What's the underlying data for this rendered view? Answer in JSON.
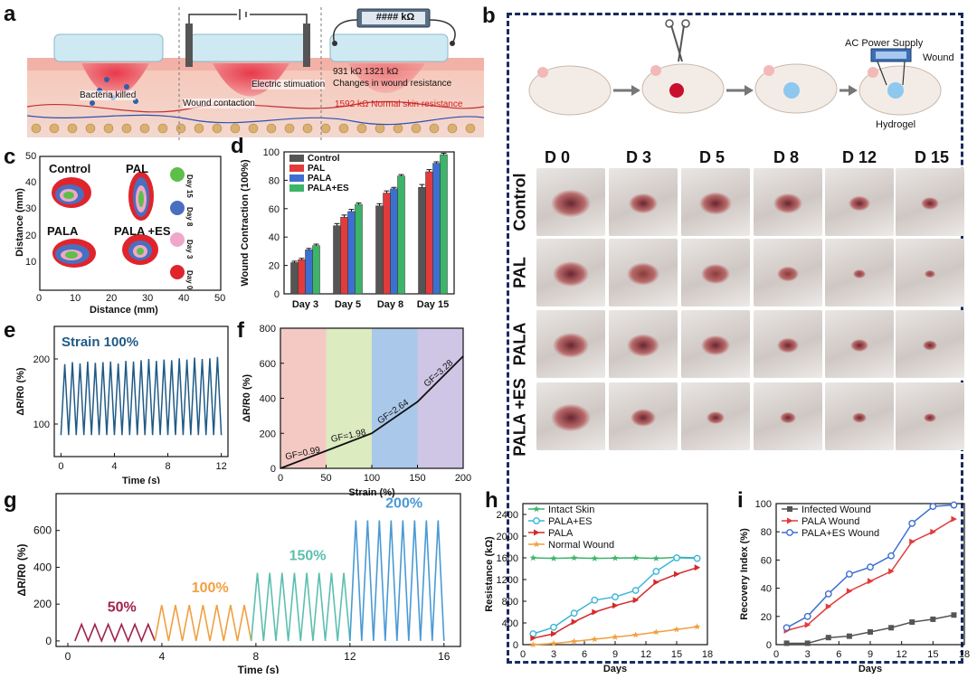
{
  "panel_labels": {
    "a": "a",
    "b": "b",
    "c": "c",
    "d": "d",
    "e": "e",
    "f": "f",
    "g": "g",
    "h": "h",
    "i": "i"
  },
  "schematic_a": {
    "meter": "#### kΩ",
    "bacteria": "Bacteria killed",
    "estim": "Electric stimuation",
    "contact": "Wound contaction",
    "resist": "931 kΩ 1321 kΩ",
    "resist2": "Changes in wound resistance",
    "normal": "1592 kΩ  Normal skin resistance"
  },
  "schematic_b": {
    "power": "AC Power Supply",
    "wound": "Wound",
    "hydrogel": "Hydrogel",
    "days": [
      "D 0",
      "D 3",
      "D 5",
      "D 8",
      "D 12",
      "D 15"
    ],
    "groups": [
      "Control",
      "PAL",
      "PALA",
      "PALA +ES"
    ]
  },
  "panel_c": {
    "xlabel": "Distance (mm)",
    "ylabel": "Distance (mm)",
    "xticks": [
      "0",
      "10",
      "20",
      "30",
      "40",
      "50"
    ],
    "yticks": [
      "10",
      "20",
      "30",
      "40",
      "50"
    ],
    "groups": [
      "Control",
      "PAL",
      "PALA",
      "PALA +ES"
    ],
    "legend": [
      "Day 15",
      "Day 8",
      "Day 3",
      "Day 0"
    ],
    "colors": [
      "#5cbf4a",
      "#4a6fbf",
      "#f0a8c8",
      "#e0242c"
    ]
  },
  "chart_data": [
    {
      "id": "d",
      "type": "bar",
      "categories": [
        "Day 3",
        "Day 5",
        "Day 8",
        "Day 15"
      ],
      "series": [
        {
          "name": "Control",
          "values": [
            22,
            48,
            62,
            75
          ],
          "err": [
            1,
            1.5,
            1.5,
            2
          ],
          "color": "#555555"
        },
        {
          "name": "PAL",
          "values": [
            24,
            54,
            71,
            86
          ],
          "err": [
            1,
            1.5,
            1.5,
            1.5
          ],
          "color": "#e23b3b"
        },
        {
          "name": "PALA",
          "values": [
            31,
            58,
            74,
            92
          ],
          "err": [
            1,
            1.5,
            1,
            1
          ],
          "color": "#3d6fd0"
        },
        {
          "name": "PALA+ES",
          "values": [
            34,
            63,
            83,
            98
          ],
          "err": [
            1,
            1,
            1,
            1
          ],
          "color": "#3cb46a"
        }
      ],
      "ylabel": "Wound Contraction (100%)",
      "ylim": [
        0,
        100
      ],
      "yticks": [
        "0",
        "20",
        "40",
        "60",
        "80",
        "100"
      ]
    },
    {
      "id": "e",
      "type": "line",
      "annotation": "Strain 100%",
      "xlabel": "Time (s)",
      "ylabel": "ΔR/R0 (%)",
      "xlim": [
        -0.5,
        12.5
      ],
      "ylim": [
        50,
        250
      ],
      "xticks": [
        "0",
        "4",
        "8",
        "12"
      ],
      "yticks": [
        "100",
        "200"
      ],
      "cycles": 21,
      "low": 83,
      "high": [
        192,
        195,
        193,
        196,
        194,
        195,
        196,
        193,
        197,
        196,
        198,
        200,
        197,
        199,
        198,
        201,
        199,
        202,
        200,
        201,
        203
      ]
    },
    {
      "id": "f",
      "type": "line",
      "xlabel": "Strain (%)",
      "ylabel": "ΔR/R0 (%)",
      "xlim": [
        0,
        200
      ],
      "ylim": [
        0,
        800
      ],
      "xticks": [
        "0",
        "50",
        "100",
        "150",
        "200"
      ],
      "yticks": [
        "0",
        "200",
        "400",
        "600",
        "800"
      ],
      "x": [
        0,
        50,
        100,
        150,
        200
      ],
      "y": [
        0,
        100,
        200,
        380,
        640
      ],
      "bands": [
        "#f4c9c4",
        "#dcebc0",
        "#a9c8ea",
        "#cfc6e6"
      ],
      "gf_labels": [
        "GF=0.99",
        "GF=1.98",
        "GF=2.64",
        "GF=3.28"
      ]
    },
    {
      "id": "g",
      "type": "line",
      "xlabel": "Time (s)",
      "ylabel": "ΔR/R0 (%)",
      "xlim": [
        -0.5,
        16.7
      ],
      "ylim": [
        -30,
        800
      ],
      "xticks": [
        "0",
        "4",
        "8",
        "12",
        "16"
      ],
      "yticks": [
        "0",
        "200",
        "400",
        "600"
      ],
      "segments": [
        {
          "label": "50%",
          "t0": 0.3,
          "t1": 3.7,
          "cycles": 6,
          "high": 90,
          "color": "#a0224a"
        },
        {
          "label": "100%",
          "t0": 3.7,
          "t1": 7.8,
          "cycles": 7,
          "high": 195,
          "color": "#f0a040"
        },
        {
          "label": "150%",
          "t0": 7.8,
          "t1": 12.0,
          "cycles": 8,
          "high": 370,
          "color": "#5cbfae"
        },
        {
          "label": "200%",
          "t0": 12.0,
          "t1": 16.0,
          "cycles": 8,
          "high": 655,
          "color": "#4a9ad4"
        }
      ]
    },
    {
      "id": "h",
      "type": "line",
      "xlabel": "Days",
      "ylabel": "Resistance (kΩ)",
      "xlim": [
        0,
        18
      ],
      "ylim": [
        0,
        2600
      ],
      "xticks": [
        "0",
        "3",
        "6",
        "9",
        "12",
        "15",
        "18"
      ],
      "yticks": [
        "0",
        "400",
        "800",
        "1200",
        "1600",
        "2000",
        "2400"
      ],
      "series": [
        {
          "name": "Intact Skin",
          "x": [
            1,
            3,
            5,
            7,
            9,
            11,
            13,
            15,
            17
          ],
          "y": [
            1600,
            1590,
            1600,
            1590,
            1595,
            1600,
            1590,
            1610,
            1600
          ],
          "color": "#3cb46a",
          "marker": "star"
        },
        {
          "name": "PALA+ES",
          "x": [
            1,
            3,
            5,
            7,
            9,
            11,
            13,
            15,
            17
          ],
          "y": [
            200,
            320,
            580,
            820,
            880,
            1000,
            1350,
            1600,
            1590
          ],
          "color": "#3ab6d8",
          "marker": "circle"
        },
        {
          "name": "PALA",
          "x": [
            1,
            3,
            5,
            7,
            9,
            11,
            13,
            15,
            17
          ],
          "y": [
            120,
            200,
            420,
            600,
            720,
            820,
            1150,
            1300,
            1420
          ],
          "color": "#d42a2a",
          "marker": "triangle"
        },
        {
          "name": "Normal Wound",
          "x": [
            1,
            3,
            5,
            7,
            9,
            11,
            13,
            15,
            17
          ],
          "y": [
            0,
            20,
            60,
            100,
            140,
            180,
            230,
            280,
            330
          ],
          "color": "#f0a040",
          "marker": "star"
        }
      ]
    },
    {
      "id": "i",
      "type": "line",
      "xlabel": "Days",
      "ylabel": "Recovery Index (%)",
      "xlim": [
        0,
        18
      ],
      "ylim": [
        0,
        100
      ],
      "xticks": [
        "0",
        "3",
        "6",
        "9",
        "12",
        "15",
        "18"
      ],
      "yticks": [
        "0",
        "20",
        "40",
        "60",
        "80",
        "100"
      ],
      "series": [
        {
          "name": "Infected Wound",
          "x": [
            1,
            3,
            5,
            7,
            9,
            11,
            13,
            15,
            17
          ],
          "y": [
            1,
            1,
            5,
            6,
            9,
            12,
            16,
            18,
            21
          ],
          "color": "#555555",
          "marker": "square"
        },
        {
          "name": "PALA Wound",
          "x": [
            1,
            3,
            5,
            7,
            9,
            11,
            13,
            15,
            17
          ],
          "y": [
            10,
            14,
            27,
            38,
            45,
            52,
            73,
            80,
            89
          ],
          "color": "#e23b3b",
          "marker": "triangle"
        },
        {
          "name": "PALA+ES Wound",
          "x": [
            1,
            3,
            5,
            7,
            9,
            11,
            13,
            15,
            17
          ],
          "y": [
            12,
            20,
            36,
            50,
            55,
            63,
            86,
            98,
            99
          ],
          "color": "#3d6fd0",
          "marker": "circle"
        }
      ]
    }
  ]
}
